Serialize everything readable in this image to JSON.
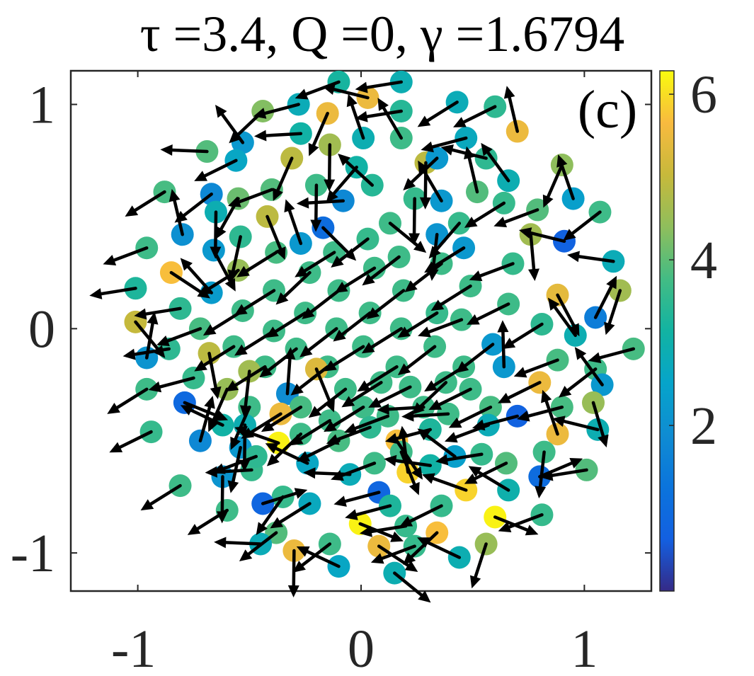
{
  "chart_data": {
    "type": "scatter",
    "title": "τ =3.4,  Q =0,  γ =1.6794",
    "panel_label": "(c)",
    "xlabel": "",
    "ylabel": "",
    "xlim": [
      -1.3,
      1.3
    ],
    "ylim": [
      -1.17,
      1.15
    ],
    "x_ticks": [
      {
        "value": -1,
        "label": "-1"
      },
      {
        "value": 0,
        "label": "0"
      },
      {
        "value": 1,
        "label": "1"
      }
    ],
    "y_ticks": [
      {
        "value": -1,
        "label": "-1"
      },
      {
        "value": 0,
        "label": "0"
      },
      {
        "value": 1,
        "label": "1"
      }
    ],
    "colorbar": {
      "colormap": "parula",
      "range": [
        0,
        6.283
      ],
      "ticks": [
        {
          "value": 2,
          "label": "2"
        },
        {
          "value": 4,
          "label": "4"
        },
        {
          "value": 6,
          "label": "6"
        }
      ]
    },
    "grid": false,
    "arrow_color": "#000000",
    "points": [
      {
        "x": -0.1,
        "y": 1.1,
        "phase": 3.2,
        "angle": 3.5
      },
      {
        "x": 0.18,
        "y": 1.1,
        "phase": 2.9,
        "angle": 3.3
      },
      {
        "x": 0.03,
        "y": 1.03,
        "phase": 5.5,
        "angle": 2.9
      },
      {
        "x": -0.28,
        "y": 1.0,
        "phase": 2.8,
        "angle": 3.4
      },
      {
        "x": 0.43,
        "y": 1.01,
        "phase": 2.8,
        "angle": 3.7
      },
      {
        "x": 0.6,
        "y": 0.99,
        "phase": 3.5,
        "angle": 3.6
      },
      {
        "x": -0.44,
        "y": 0.97,
        "phase": 4.3,
        "angle": 3.9
      },
      {
        "x": -0.15,
        "y": 0.96,
        "phase": 5.5,
        "angle": 4.3
      },
      {
        "x": 0.18,
        "y": 0.97,
        "phase": 3.4,
        "angle": 3.3
      },
      {
        "x": -0.27,
        "y": 0.87,
        "phase": 3.1,
        "angle": 3.2
      },
      {
        "x": 0.01,
        "y": 0.85,
        "phase": 2.9,
        "angle": 1.9
      },
      {
        "x": 0.7,
        "y": 0.88,
        "phase": 5.5,
        "angle": 1.8
      },
      {
        "x": -0.53,
        "y": 0.83,
        "phase": 2.2,
        "angle": 2.2
      },
      {
        "x": 0.47,
        "y": 0.85,
        "phase": 2.7,
        "angle": 3.4
      },
      {
        "x": -0.69,
        "y": 0.79,
        "phase": 3.9,
        "angle": 3.1
      },
      {
        "x": -0.14,
        "y": 0.82,
        "phase": 4.6,
        "angle": 4.7
      },
      {
        "x": 0.18,
        "y": 0.85,
        "phase": 3.7,
        "angle": 2.1
      },
      {
        "x": -0.31,
        "y": 0.76,
        "phase": 4.9,
        "angle": 4.3
      },
      {
        "x": 0.29,
        "y": 0.74,
        "phase": 4.9,
        "angle": 4.7
      },
      {
        "x": 0.56,
        "y": 0.76,
        "phase": 3.5,
        "angle": 2.9
      },
      {
        "x": -0.56,
        "y": 0.75,
        "phase": 2.6,
        "angle": 3.6
      },
      {
        "x": 0.9,
        "y": 0.73,
        "phase": 4.4,
        "angle": 4.3
      },
      {
        "x": -0.02,
        "y": 0.72,
        "phase": 3.1,
        "angle": 4.0
      },
      {
        "x": 0.34,
        "y": 0.76,
        "phase": 2.2,
        "angle": 3.9
      },
      {
        "x": 0.66,
        "y": 0.66,
        "phase": 2.9,
        "angle": 2.2
      },
      {
        "x": -0.4,
        "y": 0.62,
        "phase": 3.9,
        "angle": 3.5
      },
      {
        "x": -0.2,
        "y": 0.64,
        "phase": 3.7,
        "angle": 4.7
      },
      {
        "x": 0.05,
        "y": 0.64,
        "phase": 3.4,
        "angle": 2.4
      },
      {
        "x": 0.52,
        "y": 0.61,
        "phase": 3.9,
        "angle": 1.8
      },
      {
        "x": -0.67,
        "y": 0.6,
        "phase": 1.8,
        "angle": 3.8
      },
      {
        "x": -0.55,
        "y": 0.58,
        "phase": 4.1,
        "angle": 4.2
      },
      {
        "x": -0.08,
        "y": 0.57,
        "phase": 1.8,
        "angle": 3.2
      },
      {
        "x": 0.24,
        "y": 0.58,
        "phase": 3.6,
        "angle": 4.7
      },
      {
        "x": 0.36,
        "y": 0.57,
        "phase": 2.2,
        "angle": 2.1
      },
      {
        "x": 0.64,
        "y": 0.56,
        "phase": 3.6,
        "angle": 3.7
      },
      {
        "x": 0.95,
        "y": 0.58,
        "phase": 2.4,
        "angle": 1.9
      },
      {
        "x": -0.88,
        "y": 0.61,
        "phase": 3.8,
        "angle": 3.7
      },
      {
        "x": -0.65,
        "y": 0.52,
        "phase": 2.9,
        "angle": 4.7
      },
      {
        "x": -0.42,
        "y": 0.5,
        "phase": 4.9,
        "angle": 5.1
      },
      {
        "x": -0.17,
        "y": 0.45,
        "phase": 1.0,
        "angle": 5.5
      },
      {
        "x": 0.13,
        "y": 0.47,
        "phase": 3.7,
        "angle": 5.6
      },
      {
        "x": 0.44,
        "y": 0.47,
        "phase": 3.6,
        "angle": 4.0
      },
      {
        "x": 0.79,
        "y": 0.53,
        "phase": 3.9,
        "angle": 3.5
      },
      {
        "x": -0.8,
        "y": 0.42,
        "phase": 2.0,
        "angle": 1.8
      },
      {
        "x": -0.54,
        "y": 0.41,
        "phase": 3.5,
        "angle": 4.5
      },
      {
        "x": -0.27,
        "y": 0.38,
        "phase": 2.2,
        "angle": 1.9
      },
      {
        "x": 0.03,
        "y": 0.4,
        "phase": 3.6,
        "angle": 3.8
      },
      {
        "x": 0.34,
        "y": 0.42,
        "phase": 2.1,
        "angle": 4.6
      },
      {
        "x": 0.76,
        "y": 0.42,
        "phase": 4.6,
        "angle": 4.8
      },
      {
        "x": 1.07,
        "y": 0.52,
        "phase": 3.7,
        "angle": 3.8
      },
      {
        "x": -0.96,
        "y": 0.36,
        "phase": 3.7,
        "angle": 3.5
      },
      {
        "x": -0.66,
        "y": 0.35,
        "phase": 2.2,
        "angle": 5.2
      },
      {
        "x": -0.38,
        "y": 0.34,
        "phase": 3.8,
        "angle": 3.7
      },
      {
        "x": -0.12,
        "y": 0.34,
        "phase": 3.7,
        "angle": 3.7
      },
      {
        "x": 0.17,
        "y": 0.32,
        "phase": 3.7,
        "angle": 3.8
      },
      {
        "x": 0.46,
        "y": 0.36,
        "phase": 2.2,
        "angle": 3.7
      },
      {
        "x": 0.91,
        "y": 0.39,
        "phase": 0.7,
        "angle": 2.9
      },
      {
        "x": -0.85,
        "y": 0.25,
        "phase": 5.7,
        "angle": 5.7
      },
      {
        "x": -0.55,
        "y": 0.26,
        "phase": 4.5,
        "angle": 3.7
      },
      {
        "x": -0.23,
        "y": 0.25,
        "phase": 3.7,
        "angle": 3.9
      },
      {
        "x": 0.06,
        "y": 0.27,
        "phase": 3.7,
        "angle": 3.7
      },
      {
        "x": 0.36,
        "y": 0.29,
        "phase": 3.7,
        "angle": 3.8
      },
      {
        "x": 0.68,
        "y": 0.29,
        "phase": 3.6,
        "angle": 3.5
      },
      {
        "x": 1.13,
        "y": 0.3,
        "phase": 2.8,
        "angle": 3.0
      },
      {
        "x": -1.01,
        "y": 0.18,
        "phase": 3.3,
        "angle": 3.3
      },
      {
        "x": -0.67,
        "y": 0.16,
        "phase": 2.3,
        "angle": 2.3
      },
      {
        "x": -0.39,
        "y": 0.17,
        "phase": 3.7,
        "angle": 3.7
      },
      {
        "x": -0.1,
        "y": 0.17,
        "phase": 3.7,
        "angle": 3.8
      },
      {
        "x": 0.19,
        "y": 0.17,
        "phase": 3.7,
        "angle": 3.8
      },
      {
        "x": 0.49,
        "y": 0.19,
        "phase": 3.7,
        "angle": 3.7
      },
      {
        "x": 0.88,
        "y": 0.15,
        "phase": 5.4,
        "angle": 5.2
      },
      {
        "x": 1.16,
        "y": 0.17,
        "phase": 4.6,
        "angle": 4.4
      },
      {
        "x": -0.81,
        "y": 0.09,
        "phase": 3.5,
        "angle": 3.3
      },
      {
        "x": -0.53,
        "y": 0.08,
        "phase": 3.7,
        "angle": 3.7
      },
      {
        "x": -0.25,
        "y": 0.07,
        "phase": 3.7,
        "angle": 3.7
      },
      {
        "x": 0.04,
        "y": 0.07,
        "phase": 3.7,
        "angle": 3.8
      },
      {
        "x": 0.34,
        "y": 0.07,
        "phase": 3.6,
        "angle": 3.7
      },
      {
        "x": 0.66,
        "y": 0.11,
        "phase": 3.7,
        "angle": 3.6
      },
      {
        "x": -1.01,
        "y": 0.03,
        "phase": 5.0,
        "angle": 5.4
      },
      {
        "x": -0.72,
        "y": 0.0,
        "phase": 3.8,
        "angle": 3.5
      },
      {
        "x": -0.39,
        "y": -0.01,
        "phase": 3.7,
        "angle": 3.7
      },
      {
        "x": -0.11,
        "y": 0.0,
        "phase": 3.7,
        "angle": 3.8
      },
      {
        "x": 0.18,
        "y": 0.0,
        "phase": 3.7,
        "angle": 3.7
      },
      {
        "x": 0.45,
        "y": 0.04,
        "phase": 3.7,
        "angle": 3.5
      },
      {
        "x": 0.81,
        "y": 0.02,
        "phase": 3.5,
        "angle": 3.7
      },
      {
        "x": 1.05,
        "y": 0.05,
        "phase": 1.5,
        "angle": 1.1
      },
      {
        "x": -0.86,
        "y": -0.09,
        "phase": 3.5,
        "angle": 3.3
      },
      {
        "x": -0.57,
        "y": -0.08,
        "phase": 3.7,
        "angle": 3.7
      },
      {
        "x": -0.29,
        "y": -0.09,
        "phase": 3.7,
        "angle": 3.8
      },
      {
        "x": 0.01,
        "y": -0.08,
        "phase": 3.7,
        "angle": 3.7
      },
      {
        "x": 0.33,
        "y": -0.08,
        "phase": 3.7,
        "angle": 3.8
      },
      {
        "x": 0.59,
        "y": -0.07,
        "phase": 2.2,
        "angle": 3.8
      },
      {
        "x": 0.96,
        "y": -0.03,
        "phase": 2.9,
        "angle": 2.2
      },
      {
        "x": -0.96,
        "y": -0.13,
        "phase": 2.1,
        "angle": 1.4
      },
      {
        "x": -0.68,
        "y": -0.11,
        "phase": 4.9,
        "angle": 4.9
      },
      {
        "x": -0.43,
        "y": -0.17,
        "phase": 3.7,
        "angle": 3.7
      },
      {
        "x": -0.15,
        "y": -0.17,
        "phase": 3.7,
        "angle": 3.8
      },
      {
        "x": 0.16,
        "y": -0.17,
        "phase": 3.7,
        "angle": 3.7
      },
      {
        "x": 0.46,
        "y": -0.17,
        "phase": 3.7,
        "angle": 3.7
      },
      {
        "x": 0.88,
        "y": -0.14,
        "phase": 3.8,
        "angle": 3.5
      },
      {
        "x": 1.22,
        "y": -0.09,
        "phase": 3.8,
        "angle": 3.4
      },
      {
        "x": -0.75,
        "y": -0.22,
        "phase": 3.6,
        "angle": 3.4
      },
      {
        "x": -0.5,
        "y": -0.19,
        "phase": 4.6,
        "angle": 4.6
      },
      {
        "x": -0.2,
        "y": -0.18,
        "phase": 5.3,
        "angle": 5.1
      },
      {
        "x": 0.09,
        "y": -0.24,
        "phase": 3.7,
        "angle": 3.7
      },
      {
        "x": 0.38,
        "y": -0.24,
        "phase": 3.7,
        "angle": 3.9
      },
      {
        "x": 0.64,
        "y": -0.17,
        "phase": 2.2,
        "angle": 1.6
      },
      {
        "x": 0.8,
        "y": -0.24,
        "phase": 5.5,
        "angle": 3.6
      },
      {
        "x": 1.05,
        "y": -0.18,
        "phase": 3.7,
        "angle": 3.8
      },
      {
        "x": -0.96,
        "y": -0.27,
        "phase": 3.7,
        "angle": 3.7
      },
      {
        "x": -0.6,
        "y": -0.27,
        "phase": 4.5,
        "angle": 4.3
      },
      {
        "x": -0.33,
        "y": -0.29,
        "phase": 1.9,
        "angle": 1.5
      },
      {
        "x": -0.07,
        "y": -0.27,
        "phase": 3.7,
        "angle": 3.8
      },
      {
        "x": 0.22,
        "y": -0.26,
        "phase": 3.7,
        "angle": 3.6
      },
      {
        "x": 0.49,
        "y": -0.27,
        "phase": 3.7,
        "angle": 3.6
      },
      {
        "x": 1.08,
        "y": -0.25,
        "phase": 2.2,
        "angle": 2.2
      },
      {
        "x": -0.79,
        "y": -0.33,
        "phase": 0.9,
        "angle": 5.9
      },
      {
        "x": -0.5,
        "y": -0.35,
        "phase": 3.7,
        "angle": 4.3
      },
      {
        "x": -0.27,
        "y": -0.35,
        "phase": 3.8,
        "angle": 3.7
      },
      {
        "x": 0.01,
        "y": -0.35,
        "phase": 3.7,
        "angle": 3.7
      },
      {
        "x": 0.28,
        "y": -0.35,
        "phase": 3.7,
        "angle": 3.2
      },
      {
        "x": 0.58,
        "y": -0.35,
        "phase": 3.8,
        "angle": 3.6
      },
      {
        "x": 0.9,
        "y": -0.35,
        "phase": 3.8,
        "angle": 3.4
      },
      {
        "x": 1.04,
        "y": -0.33,
        "phase": 4.5,
        "angle": 5.0
      },
      {
        "x": -0.62,
        "y": -0.43,
        "phase": 3.1,
        "angle": 2.7
      },
      {
        "x": -0.36,
        "y": -0.38,
        "phase": 5.5,
        "angle": 3.7
      },
      {
        "x": -0.14,
        "y": -0.41,
        "phase": 3.7,
        "angle": 3.7
      },
      {
        "x": 0.12,
        "y": -0.39,
        "phase": 3.7,
        "angle": 3.5
      },
      {
        "x": 0.39,
        "y": -0.38,
        "phase": 3.7,
        "angle": 3.2
      },
      {
        "x": 0.7,
        "y": -0.39,
        "phase": 0.7,
        "angle": 3.4
      },
      {
        "x": -0.94,
        "y": -0.46,
        "phase": 3.6,
        "angle": 3.6
      },
      {
        "x": -0.52,
        "y": -0.43,
        "phase": 2.9,
        "angle": 4.7
      },
      {
        "x": -0.27,
        "y": -0.47,
        "phase": 3.7,
        "angle": 3.9
      },
      {
        "x": 0.04,
        "y": -0.44,
        "phase": 3.5,
        "angle": 3.5
      },
      {
        "x": 0.31,
        "y": -0.45,
        "phase": 3.3,
        "angle": 3.4
      },
      {
        "x": 0.57,
        "y": -0.43,
        "phase": 2.8,
        "angle": 3.5
      },
      {
        "x": 0.88,
        "y": -0.47,
        "phase": 5.5,
        "angle": 1.9
      },
      {
        "x": 1.06,
        "y": -0.45,
        "phase": 2.9,
        "angle": 2.9
      },
      {
        "x": -0.72,
        "y": -0.5,
        "phase": 1.8,
        "angle": 1.3
      },
      {
        "x": -0.54,
        "y": -0.53,
        "phase": 2.2,
        "angle": 4.5
      },
      {
        "x": -0.37,
        "y": -0.51,
        "phase": 6.2,
        "angle": 2.8
      },
      {
        "x": -0.1,
        "y": -0.5,
        "phase": 3.8,
        "angle": 3.6
      },
      {
        "x": 0.16,
        "y": -0.5,
        "phase": 5.7,
        "angle": 5.3
      },
      {
        "x": 0.42,
        "y": -0.57,
        "phase": 2.4,
        "angle": 2.5
      },
      {
        "x": 0.82,
        "y": -0.55,
        "phase": 3.7,
        "angle": 4.6
      },
      {
        "x": -0.24,
        "y": -0.6,
        "phase": 2.6,
        "angle": 2.7
      },
      {
        "x": 0.06,
        "y": -0.6,
        "phase": 3.7,
        "angle": 3.5
      },
      {
        "x": 0.31,
        "y": -0.61,
        "phase": 3.1,
        "angle": 3.0
      },
      {
        "x": 0.54,
        "y": -0.56,
        "phase": 3.6,
        "angle": 3.3
      },
      {
        "x": 0.65,
        "y": -0.6,
        "phase": 3.9,
        "angle": 3.6
      },
      {
        "x": -0.49,
        "y": -0.63,
        "phase": 3.6,
        "angle": 3.2
      },
      {
        "x": -0.62,
        "y": -0.66,
        "phase": 2.1,
        "angle": 4.7
      },
      {
        "x": -0.05,
        "y": -0.65,
        "phase": 2.8,
        "angle": 3.1
      },
      {
        "x": 0.21,
        "y": -0.64,
        "phase": 5.9,
        "angle": 1.7
      },
      {
        "x": 0.8,
        "y": -0.66,
        "phase": 1.0,
        "angle": 0.4
      },
      {
        "x": 1.01,
        "y": -0.63,
        "phase": 3.9,
        "angle": 3.3
      },
      {
        "x": -0.81,
        "y": -0.7,
        "phase": 3.7,
        "angle": 3.7
      },
      {
        "x": -0.35,
        "y": -0.75,
        "phase": 3.6,
        "angle": 4.1
      },
      {
        "x": 0.08,
        "y": -0.73,
        "phase": 0.8,
        "angle": 3.4
      },
      {
        "x": 0.47,
        "y": -0.72,
        "phase": 5.9,
        "angle": 2.8
      },
      {
        "x": 0.66,
        "y": -0.72,
        "phase": 3.0,
        "angle": 2.6
      },
      {
        "x": -0.6,
        "y": -0.81,
        "phase": 3.7,
        "angle": 3.7
      },
      {
        "x": -0.44,
        "y": -0.78,
        "phase": 0.8,
        "angle": 0.3
      },
      {
        "x": -0.23,
        "y": -0.78,
        "phase": 2.7,
        "angle": 3.7
      },
      {
        "x": 0.13,
        "y": -0.79,
        "phase": 3.3,
        "angle": 3.4
      },
      {
        "x": 0.36,
        "y": -0.79,
        "phase": 3.6,
        "angle": 3.6
      },
      {
        "x": 0.6,
        "y": -0.84,
        "phase": 6.2,
        "angle": 5.9
      },
      {
        "x": 0.81,
        "y": -0.83,
        "phase": 3.6,
        "angle": 3.5
      },
      {
        "x": -0.004,
        "y": -0.87,
        "phase": 6.2,
        "angle": 5.9
      },
      {
        "x": 0.2,
        "y": -0.88,
        "phase": 3.6,
        "angle": 3.3
      },
      {
        "x": 0.34,
        "y": -0.91,
        "phase": 5.7,
        "angle": 3.9
      },
      {
        "x": -0.38,
        "y": -0.91,
        "phase": 3.9,
        "angle": 3.8
      },
      {
        "x": -0.14,
        "y": -0.96,
        "phase": 3.7,
        "angle": 3.8
      },
      {
        "x": -0.45,
        "y": -0.96,
        "phase": 2.8,
        "angle": 3.1
      },
      {
        "x": 0.08,
        "y": -0.97,
        "phase": 5.5,
        "angle": 5.7
      },
      {
        "x": 0.24,
        "y": -0.97,
        "phase": 3.6,
        "angle": 3.5
      },
      {
        "x": 0.56,
        "y": -0.96,
        "phase": 4.5,
        "angle": 4.4
      },
      {
        "x": -0.3,
        "y": -0.99,
        "phase": 5.5,
        "angle": 4.7
      },
      {
        "x": 0.44,
        "y": -1.02,
        "phase": 2.9,
        "angle": 2.7
      },
      {
        "x": -0.1,
        "y": -1.06,
        "phase": 2.6,
        "angle": 2.7
      },
      {
        "x": 0.15,
        "y": -1.09,
        "phase": 2.9,
        "angle": 5.6
      },
      {
        "x": -0.47,
        "y": -0.57,
        "phase": 3.5,
        "angle": 3.5
      },
      {
        "x": 0.18,
        "y": -0.55,
        "phase": 3.7,
        "angle": 5.1
      }
    ]
  }
}
